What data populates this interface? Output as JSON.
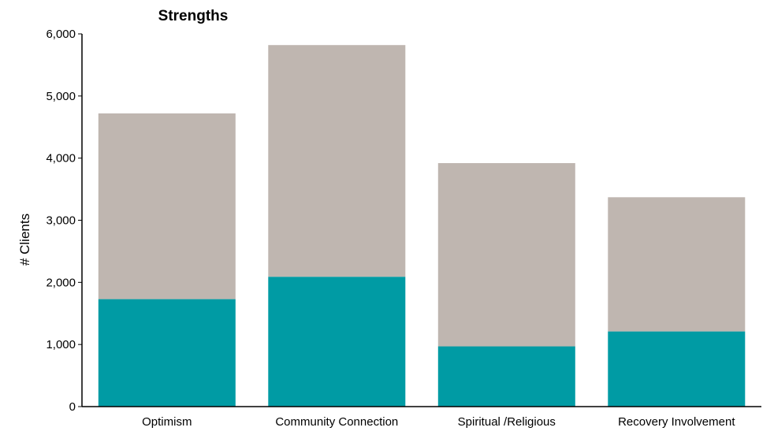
{
  "chart_data": {
    "type": "bar",
    "stacked": true,
    "title": "Strengths",
    "xlabel": "",
    "ylabel": "# Clients",
    "ylim": [
      0,
      6000
    ],
    "yticks": [
      0,
      1000,
      2000,
      3000,
      4000,
      5000,
      6000
    ],
    "ytick_labels": [
      "0",
      "1,000",
      "2,000",
      "3,000",
      "4,000",
      "5,000",
      "6,000"
    ],
    "categories": [
      "Optimism",
      "Community Connection",
      "Spiritual /Religious",
      "Recovery Involvement"
    ],
    "series": [
      {
        "values": [
          1730,
          2090,
          970,
          1210
        ],
        "color": "#009ba4"
      },
      {
        "values": [
          2990,
          3730,
          2950,
          2160
        ],
        "color": "#bfb6b0"
      }
    ],
    "grid": false,
    "legend": "none"
  }
}
